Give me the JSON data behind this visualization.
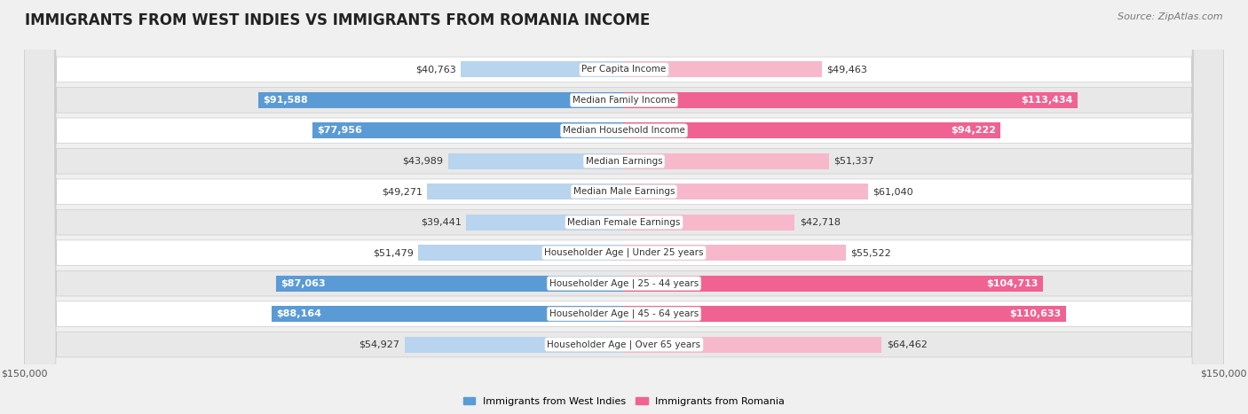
{
  "title": "IMMIGRANTS FROM WEST INDIES VS IMMIGRANTS FROM ROMANIA INCOME",
  "source": "Source: ZipAtlas.com",
  "categories": [
    "Per Capita Income",
    "Median Family Income",
    "Median Household Income",
    "Median Earnings",
    "Median Male Earnings",
    "Median Female Earnings",
    "Householder Age | Under 25 years",
    "Householder Age | 25 - 44 years",
    "Householder Age | 45 - 64 years",
    "Householder Age | Over 65 years"
  ],
  "west_indies": [
    40763,
    91588,
    77956,
    43989,
    49271,
    39441,
    51479,
    87063,
    88164,
    54927
  ],
  "romania": [
    49463,
    113434,
    94222,
    51337,
    61040,
    42718,
    55522,
    104713,
    110633,
    64462
  ],
  "max_value": 150000,
  "color_wi_light": "#b8d4ee",
  "color_wi_dark": "#5b9bd5",
  "color_ro_light": "#f7b8cc",
  "color_ro_dark": "#f06292",
  "label_west_indies": "Immigrants from West Indies",
  "label_romania": "Immigrants from Romania",
  "background_color": "#f0f0f0",
  "row_bg_white": "#ffffff",
  "row_bg_gray": "#e8e8e8",
  "title_fontsize": 12,
  "source_fontsize": 8,
  "bar_label_fontsize": 8,
  "cat_label_fontsize": 7.5,
  "legend_fontsize": 8,
  "axis_fontsize": 8,
  "wi_threshold": 65000,
  "ro_threshold": 65000
}
